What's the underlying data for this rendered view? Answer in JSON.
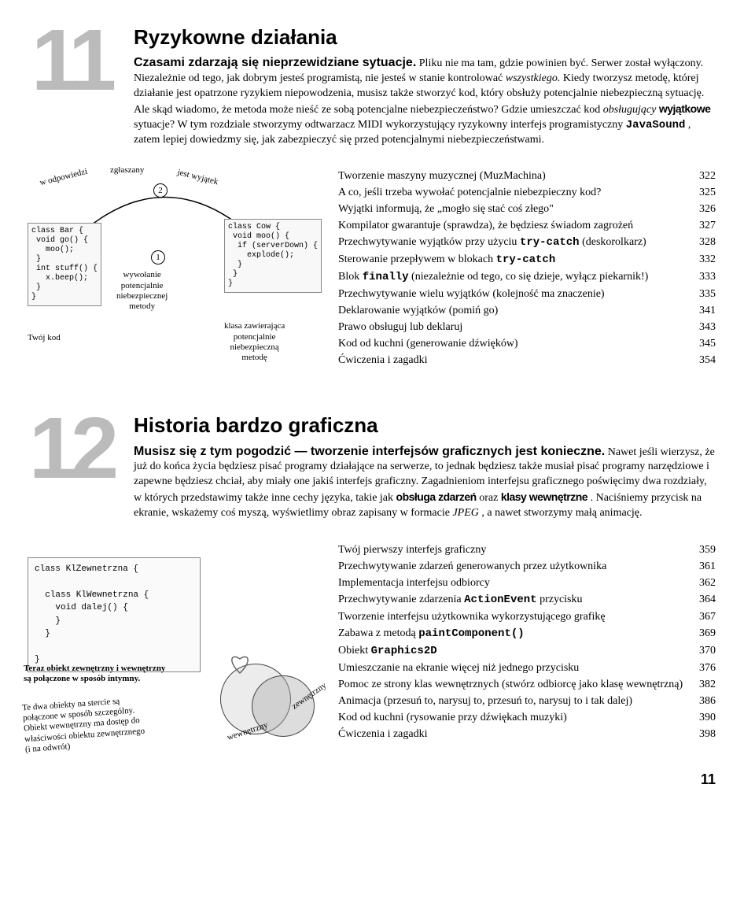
{
  "ch11": {
    "num": "11",
    "title": "Ryzykowne działania",
    "sub": "Czasami zdarzają się nieprzewidziane sytuacje.",
    "body": " Pliku nie ma tam, gdzie powinien być. Serwer został wyłączony. Niezależnie od tego, jak dobrym jesteś programistą, nie jesteś w stanie kontrolować ",
    "body_it1": "wszystkiego.",
    "body2": " Kiedy tworzysz metodę, której działanie jest opatrzone ryzykiem niepowodzenia, musisz także stworzyć kod, który obsłuży potencjalnie niebezpieczną sytuację. Ale skąd wiadomo, że metoda może nieść ze sobą potencjalne niebezpieczeństwo? Gdzie umieszczać kod ",
    "body_it2": "obsługujący",
    "body2b": " ",
    "body_bold1": "wyjątkowe",
    "body2c": " sytuacje? W tym rozdziale stworzymy odtwarzacz MIDI wykorzystujący ryzykowny interfejs programistyczny ",
    "body_mono1": "JavaSound",
    "body2d": ", zatem lepiej dowiedzmy się, jak zabezpieczyć się przed potencjalnymi niebezpieczeństwami."
  },
  "diag1": {
    "label_top": "w odpowiedzi zgłaszany jest wyjątek",
    "num1": "1",
    "num2": "2",
    "code1": "class Bar {\n void go() {\n   moo();\n }\n int stuff() {\n   x.beep();\n }\n}",
    "code2": "class Cow {\n void moo() {\n  if (serverDown) {\n    explode();\n  }\n }\n}",
    "lbl_mid": "wywołanie\npotencjalnie\nniebezpiecznej\nmetody",
    "lbl_left": "Twój kod",
    "lbl_right": "klasa zawierająca\npotencjalnie\nniebezpieczną\nmetodę"
  },
  "toc11": [
    {
      "t": "Tworzenie maszyny muzycznej (MuzMachina)",
      "p": "322"
    },
    {
      "t": "A co, jeśli trzeba wywołać potencjalnie niebezpieczny kod?",
      "p": "325"
    },
    {
      "t": "Wyjątki informują, że „mogło się stać coś złego\"",
      "p": "326"
    },
    {
      "t": "Kompilator gwarantuje (sprawdza), że będziesz świadom zagrożeń",
      "p": "327"
    },
    {
      "t": "Przechwytywanie wyjątków przy użyciu <span class=\"mono\">try-catch</span> (deskorolkarz)",
      "p": "328"
    },
    {
      "t": "Sterowanie przepływem w blokach <span class=\"mono\">try-catch</span>",
      "p": "332"
    },
    {
      "t": "Blok <span class=\"mono\">finally</span> (niezależnie od tego, co się dzieje, wyłącz piekarnik!)",
      "p": "333"
    },
    {
      "t": "Przechwytywanie wielu wyjątków (kolejność ma znaczenie)",
      "p": "335"
    },
    {
      "t": "Deklarowanie wyjątków (pomiń go)",
      "p": "341"
    },
    {
      "t": "Prawo obsługuj lub deklaruj",
      "p": "343"
    },
    {
      "t": "Kod od kuchni (generowanie dźwięków)",
      "p": "345"
    },
    {
      "t": "Ćwiczenia i zagadki",
      "p": "354"
    }
  ],
  "ch12": {
    "num": "12",
    "title": "Historia bardzo graficzna",
    "sub": "Musisz się z tym pogodzić — tworzenie interfejsów graficznych jest konieczne.",
    "body": " Nawet jeśli wierzysz, że już do końca życia będziesz pisać programy działające na serwerze, to jednak będziesz także musiał pisać programy narzędziowe i zapewne będziesz chciał, aby miały one jakiś interfejs graficzny. Zagadnieniom interfejsu graficznego poświęcimy dwa rozdziały, w których przedstawimy także inne cechy języka, takie jak ",
    "body_bold1": "obsługa zdarzeń",
    "body2": " oraz ",
    "body_bold2": "klasy wewnętrzne",
    "body3": ". Naciśniemy przycisk na ekranie, wskażemy coś myszą, wyświetlimy obraz zapisany w formacie ",
    "body_it1": "JPEG",
    "body4": ", a nawet stworzymy małą animację."
  },
  "diag2": {
    "code": "class KlZewnetrzna {\n\n  class KlWewnetrzna {\n    void dalej() {\n    }\n  }\n\n}",
    "note1": "Teraz obiekt zewnętrzny i wewnętrzny\nsą połączone w sposób intymny.",
    "note2": "Te dwa obiekty na stercie są\npołączone w sposób szczególny.\nObiekt wewnętrzny ma dostęp do\nwłaściwości obiektu zewnętrznego\n(i na odwrót)",
    "lbl_outer": "zewnętrzny",
    "lbl_inner": "wewnętrzny"
  },
  "toc12": [
    {
      "t": "Twój pierwszy interfejs graficzny",
      "p": "359"
    },
    {
      "t": "Przechwytywanie zdarzeń generowanych przez użytkownika",
      "p": "361"
    },
    {
      "t": "Implementacja interfejsu odbiorcy",
      "p": "362"
    },
    {
      "t": "Przechwytywanie zdarzenia <span class=\"mono\">ActionEvent</span> przycisku",
      "p": "364"
    },
    {
      "t": "Tworzenie interfejsu użytkownika wykorzystującego grafikę",
      "p": "367"
    },
    {
      "t": "Zabawa z metodą <span class=\"mono\">paintComponent()</span>",
      "p": "369"
    },
    {
      "t": "Obiekt <span class=\"mono\">Graphics2D</span>",
      "p": "370"
    },
    {
      "t": "Umieszczanie na ekranie więcej niż jednego przycisku",
      "p": "376"
    },
    {
      "t": "Pomoc ze strony klas wewnętrznych (stwórz odbiorcę jako klasę wewnętrzną)",
      "p": "382"
    },
    {
      "t": "Animacja (przesuń to, narysuj to, przesuń to, narysuj to i tak dalej)",
      "p": "386"
    },
    {
      "t": "Kod od kuchni (rysowanie przy dźwiękach muzyki)",
      "p": "390"
    },
    {
      "t": "Ćwiczenia i zagadki",
      "p": "398"
    }
  ],
  "page": "11"
}
